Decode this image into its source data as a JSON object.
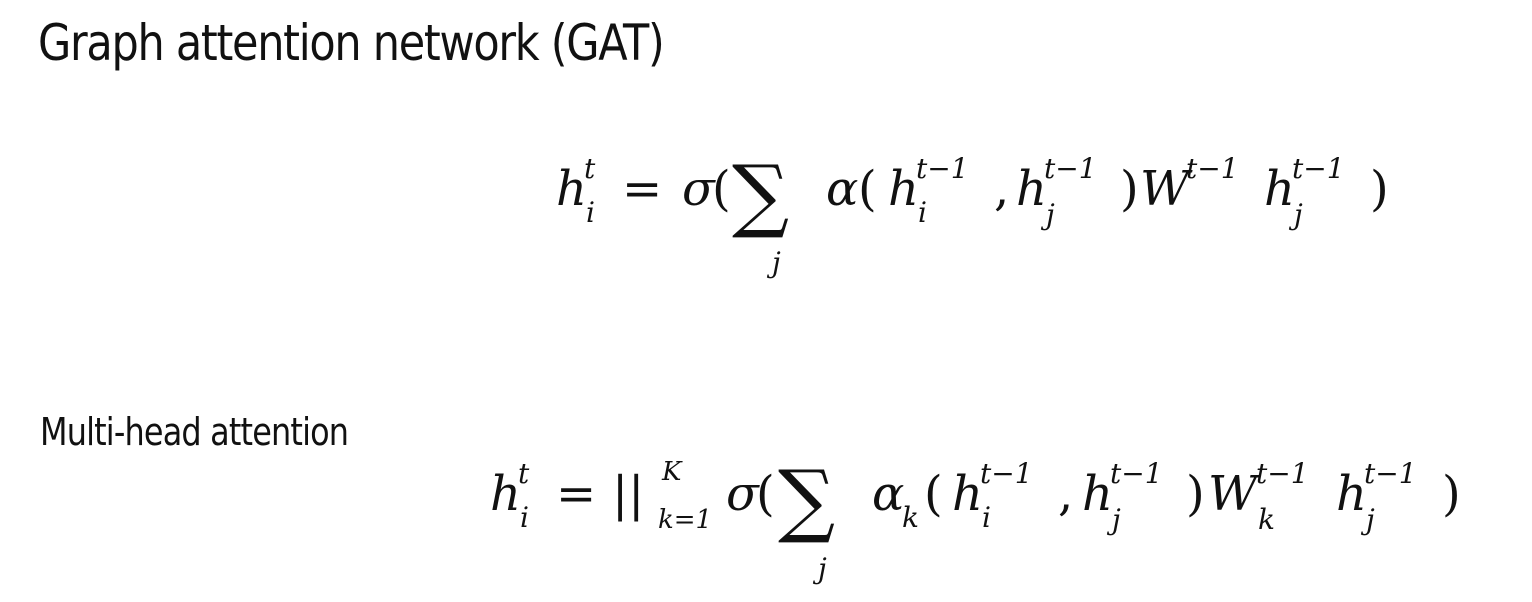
{
  "slide": {
    "title": "Graph attention network (GAT)",
    "subtitle": "Multi-head attention"
  },
  "equations": {
    "gat": {
      "tex": "h_i^t = \\sigma(\\sum_j \\alpha(h_i^{t-1}, h_j^{t-1}) W^{t-1} h_j^{t-1})",
      "sym": {
        "h": "h",
        "i": "i",
        "t": "t",
        "eq": "=",
        "sigma": "σ",
        "lparen": "(",
        "sum": "∑",
        "j": "j",
        "alpha": "α",
        "tm1": "t−1",
        "comma": ",",
        "rparen": ")",
        "W": "W",
        "rparen2": ")"
      }
    },
    "multihead": {
      "tex": "h_i^t = ||_{k=1}^K \\sigma(\\sum_j \\alpha_k(h_i^{t-1}, h_j^{t-1}) W_k^{t-1} h_j^{t-1})",
      "sym": {
        "h": "h",
        "i": "i",
        "t": "t",
        "eq": "=",
        "bars": "||",
        "K": "K",
        "k1": "k=1",
        "sigma": "σ",
        "lparen": "(",
        "sum": "∑",
        "j": "j",
        "alpha": "α",
        "k": "k",
        "tm1": "t−1",
        "comma": ",",
        "rparen": ")",
        "W": "W",
        "rparen2": ")"
      }
    }
  }
}
